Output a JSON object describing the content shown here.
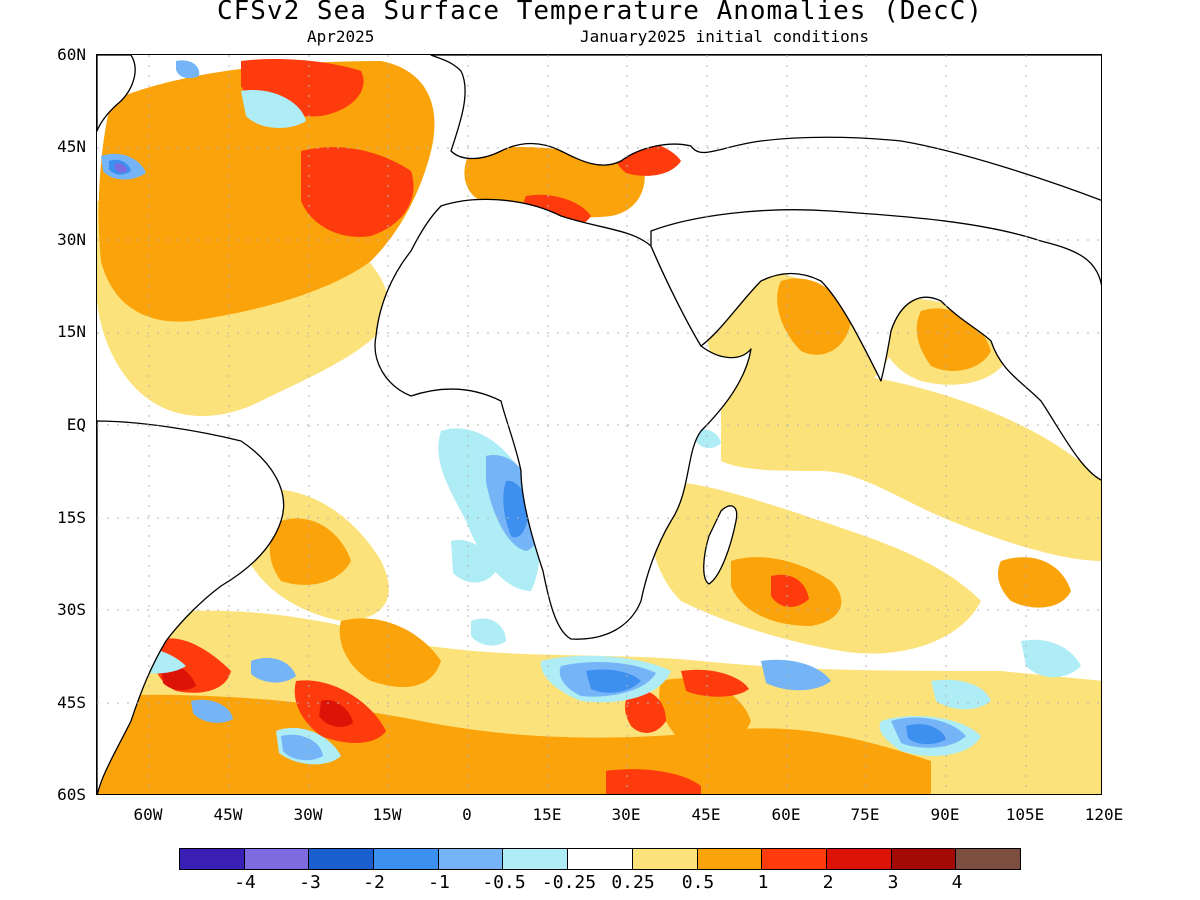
{
  "title": "CFSv2 Sea Surface Temperature Anomalies (DecC)",
  "valid_month": "Apr2025",
  "init_conditions": "January2025 initial conditions",
  "lat_labels": [
    "60N",
    "45N",
    "30N",
    "15N",
    "EQ",
    "15S",
    "30S",
    "45S",
    "60S"
  ],
  "lon_labels": [
    "60W",
    "45W",
    "30W",
    "15W",
    "0",
    "15E",
    "30E",
    "45E",
    "60E",
    "75E",
    "90E",
    "105E",
    "120E"
  ],
  "colorbar": {
    "colors": [
      "#3a1fb5",
      "#7e6bdf",
      "#1b5fcf",
      "#3d8ff0",
      "#74b4f7",
      "#aeecf6",
      "#ffffff",
      "#fce27a",
      "#fba30b",
      "#fe3b0c",
      "#dc1408",
      "#a30a05",
      "#7b4e3f"
    ],
    "labels": [
      "-4",
      "-3",
      "-2",
      "-1",
      "-0.5",
      "-0.25",
      "0.25",
      "0.5",
      "1",
      "2",
      "3",
      "4"
    ]
  },
  "colors": {
    "land": "#ffffff",
    "coast": "#000000",
    "grid": "#b4b4b4"
  }
}
